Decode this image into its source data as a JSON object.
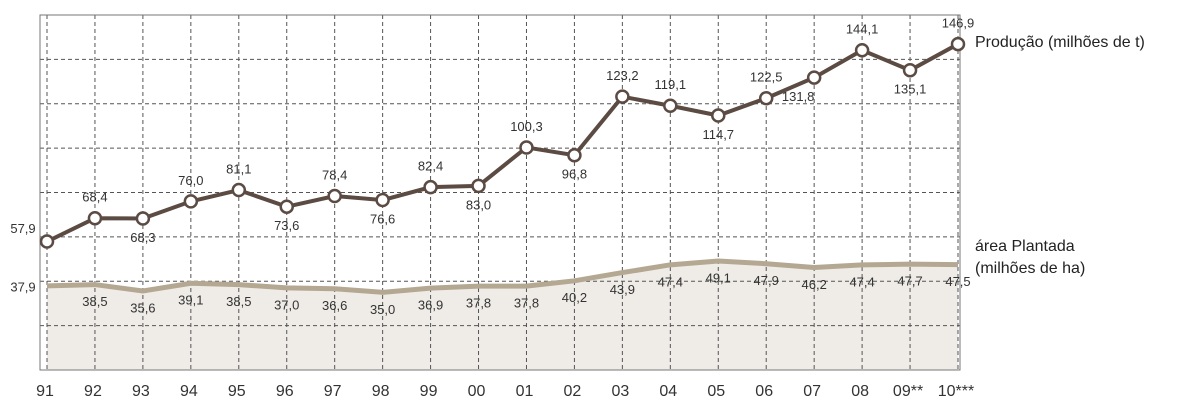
{
  "chart_data": {
    "type": "line",
    "categories": [
      "91",
      "92",
      "93",
      "94",
      "95",
      "96",
      "97",
      "98",
      "99",
      "00",
      "01",
      "02",
      "03",
      "04",
      "05",
      "06",
      "07",
      "08",
      "09**",
      "10***"
    ],
    "series": [
      {
        "name": "Produção (milhões de t)",
        "color": "#5b4b43",
        "values": [
          57.9,
          68.4,
          68.3,
          76.0,
          81.1,
          73.6,
          78.4,
          76.6,
          82.4,
          83.0,
          100.3,
          96.8,
          123.2,
          119.1,
          114.7,
          122.5,
          131.8,
          144.1,
          135.1,
          146.9
        ],
        "value_labels": [
          "57,9",
          "68,4",
          "68,3",
          "76,0",
          "81,1",
          "73,6",
          "78,4",
          "76,6",
          "82,4",
          "83,0",
          "100,3",
          "96,8",
          "123,2",
          "119,1",
          "114,7",
          "122,5",
          "131,8",
          "144,1",
          "135,1",
          "146,9"
        ]
      },
      {
        "name": "área Plantada (milhões de ha)",
        "color": "#b5a892",
        "fill": "#efece7",
        "values": [
          37.9,
          38.5,
          35.6,
          39.1,
          38.5,
          37.0,
          36.6,
          35.0,
          36.9,
          37.8,
          37.8,
          40.2,
          43.9,
          47.4,
          49.1,
          47.9,
          46.2,
          47.4,
          47.7,
          47.5
        ],
        "value_labels": [
          "37,9",
          "38,5",
          "35,6",
          "39,1",
          "38,5",
          "37,0",
          "36,6",
          "35,0",
          "36,9",
          "37,8",
          "37,8",
          "40,2",
          "43,9",
          "47,4",
          "49,1",
          "47,9",
          "46,2",
          "47,4",
          "47,7",
          "47,5"
        ]
      }
    ],
    "ylim": [
      0,
      160
    ],
    "yticks": [
      0,
      20,
      40,
      60,
      80,
      100,
      120,
      140,
      160
    ],
    "grid": true
  }
}
